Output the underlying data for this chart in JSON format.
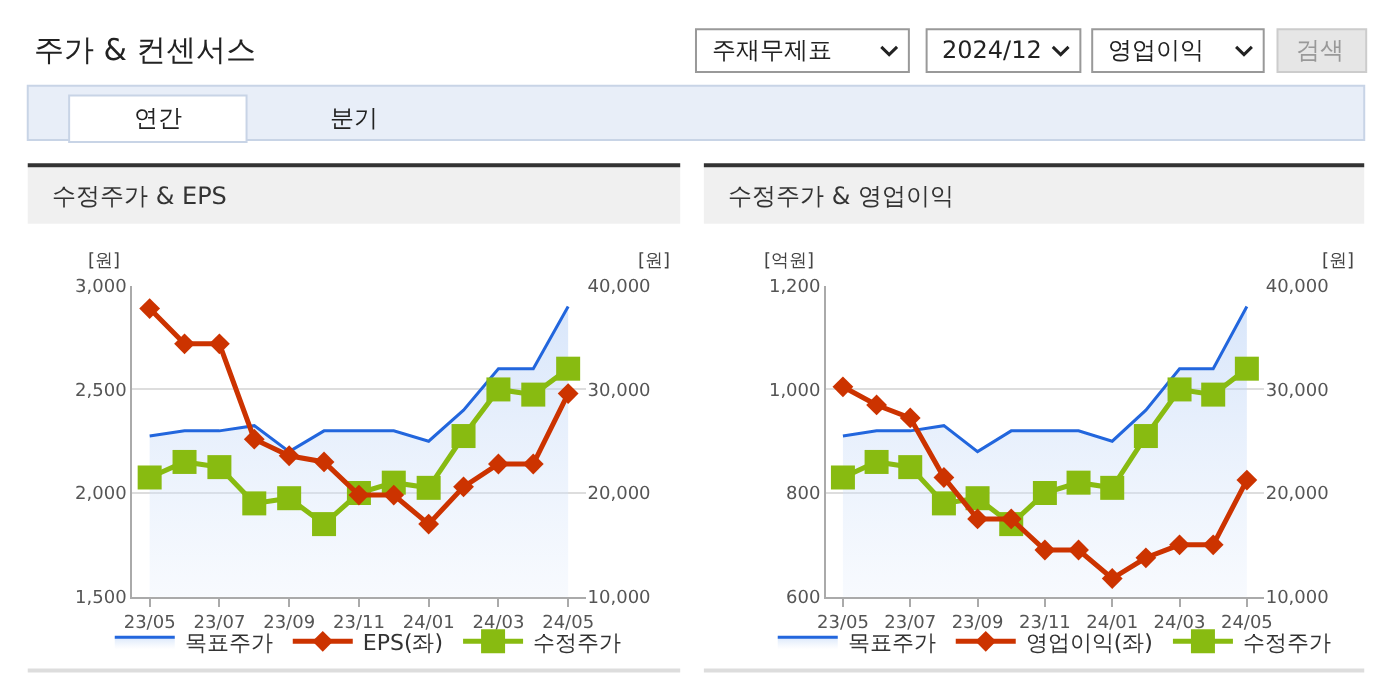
{
  "chart_data": [
    {
      "type": "line",
      "title": "수정주가 & EPS",
      "ylabel": "[원]",
      "y2label": "[원]",
      "annotations": [
        "주가 & 컨센서스",
        "주재무제표",
        "2024/12",
        "영업이익",
        "검색",
        "연간",
        "분기"
      ],
      "categories": [
        "23/05",
        null,
        "23/07",
        null,
        "23/09",
        null,
        "23/11",
        null,
        "24/01",
        null,
        "24/03",
        null,
        "24/05"
      ],
      "series": [
        {
          "name": "목표주가",
          "type": "area",
          "axis": "y2",
          "color": "#2266dd",
          "marker": "none",
          "values": [
            25500,
            26000,
            26000,
            26500,
            24000,
            26000,
            26000,
            26000,
            25000,
            28000,
            32000,
            32000,
            38000
          ]
        },
        {
          "name": "EPS(좌)",
          "color": "#cc3300",
          "marker": "diamond",
          "values": [
            2890,
            2720,
            2720,
            2260,
            2180,
            2150,
            1990,
            1990,
            1850,
            2030,
            2140,
            2140,
            2480
          ]
        },
        {
          "name": "수정주가",
          "axis": "y2",
          "color": "#88bb11",
          "marker": "square",
          "values": [
            21500,
            23000,
            22500,
            19000,
            19500,
            17000,
            20000,
            21000,
            20500,
            25500,
            30000,
            29500,
            32000
          ]
        }
      ],
      "ylim": [
        1500,
        3000
      ],
      "yticks": [
        {
          "value": 1500,
          "label": "1,500"
        },
        {
          "value": 2000,
          "label": "2,000"
        },
        {
          "value": 2500,
          "label": "2,500"
        },
        {
          "value": 3000,
          "label": "3,000"
        }
      ],
      "y2lim": [
        10000,
        40000
      ],
      "y2ticks": [
        {
          "value": 10000,
          "label": "10,000"
        },
        {
          "value": 20000,
          "label": "20,000"
        },
        {
          "value": 30000,
          "label": "30,000"
        },
        {
          "value": 40000,
          "label": "40,000"
        }
      ],
      "grid": "y",
      "legend": "bottom"
    },
    {
      "type": "line",
      "title": "수정주가 & 영업이익",
      "ylabel": "[억원]",
      "y2label": "[원]",
      "categories": [
        "23/05",
        null,
        "23/07",
        null,
        "23/09",
        null,
        "23/11",
        null,
        "24/01",
        null,
        "24/03",
        null,
        "24/05"
      ],
      "series": [
        {
          "name": "목표주가",
          "type": "area",
          "axis": "y2",
          "color": "#2266dd",
          "marker": "none",
          "values": [
            25500,
            26000,
            26000,
            26500,
            24000,
            26000,
            26000,
            26000,
            25000,
            28000,
            32000,
            32000,
            38000
          ]
        },
        {
          "name": "영업이익(좌)",
          "color": "#cc3300",
          "marker": "diamond",
          "values": [
            1005,
            970,
            945,
            830,
            750,
            750,
            690,
            690,
            635,
            675,
            700,
            700,
            825
          ]
        },
        {
          "name": "수정주가",
          "axis": "y2",
          "color": "#88bb11",
          "marker": "square",
          "values": [
            21500,
            23000,
            22500,
            19000,
            19500,
            17000,
            20000,
            21000,
            20500,
            25500,
            30000,
            29500,
            32000
          ]
        }
      ],
      "ylim": [
        600,
        1200
      ],
      "yticks": [
        {
          "value": 600,
          "label": "600"
        },
        {
          "value": 800,
          "label": "800"
        },
        {
          "value": 1000,
          "label": "1,000"
        },
        {
          "value": 1200,
          "label": "1,200"
        }
      ],
      "y2lim": [
        10000,
        40000
      ],
      "y2ticks": [
        {
          "value": 10000,
          "label": "10,000"
        },
        {
          "value": 20000,
          "label": "20,000"
        },
        {
          "value": 30000,
          "label": "30,000"
        },
        {
          "value": 40000,
          "label": "40,000"
        }
      ],
      "grid": "y",
      "legend": "bottom"
    }
  ]
}
